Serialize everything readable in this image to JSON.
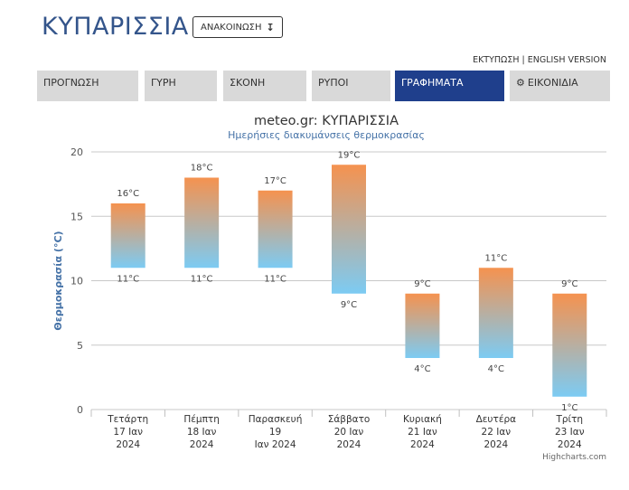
{
  "header": {
    "city_title": "ΚΥΠΑΡΙΣΣΙΑ",
    "announce_label": "ΑΝΑΚΟΙΝΩΣΗ",
    "links": {
      "print": "ΕΚΤΥΠΩΣΗ",
      "separator": " | ",
      "english": "ENGLISH VERSION"
    }
  },
  "tabs": [
    {
      "label": "ΠΡΟΓΝΩΣΗ"
    },
    {
      "label": "ΓΥΡΗ"
    },
    {
      "label": "ΣΚΟΝΗ"
    },
    {
      "label": "ΡΥΠΟΙ"
    },
    {
      "label": "ΓΡΑΦΗΜΑΤΑ"
    },
    {
      "label": "ΕΙΚΟΝΙΔΙΑ"
    }
  ],
  "colors": {
    "title_blue": "#34558b",
    "tab_active": "#1f3f8c",
    "tab_inactive": "#d9d9d9",
    "bar_top": "#f5924f",
    "bar_bottom": "#7ccbf3"
  },
  "chart_data": {
    "type": "bar",
    "subtype": "columnrange",
    "title": "meteo.gr: ΚΥΠΑΡΙΣΣΙΑ",
    "subtitle": "Ημερήσιες διακυμάνσεις θερμοκρασίας",
    "ylabel": "Θερμοκρασία (°C)",
    "ylim": [
      0,
      20
    ],
    "yticks": [
      0,
      5,
      10,
      15,
      20
    ],
    "grid": true,
    "categories": [
      [
        "Τετάρτη",
        "17 Ιαν",
        "2024"
      ],
      [
        "Πέμπτη",
        "18 Ιαν",
        "2024"
      ],
      [
        "Παρασκευή",
        "19",
        "Ιαν 2024"
      ],
      [
        "Σάββατο",
        "20 Ιαν",
        "2024"
      ],
      [
        "Κυριακή",
        "21 Ιαν",
        "2024"
      ],
      [
        "Δευτέρα",
        "22 Ιαν",
        "2024"
      ],
      [
        "Τρίτη",
        "23 Ιαν",
        "2024"
      ]
    ],
    "series": [
      {
        "low": [
          11,
          11,
          11,
          9,
          4,
          4,
          1
        ],
        "high": [
          16,
          18,
          17,
          19,
          9,
          11,
          9
        ]
      }
    ],
    "label_suffix": "°C",
    "credits": "Highcharts.com"
  }
}
